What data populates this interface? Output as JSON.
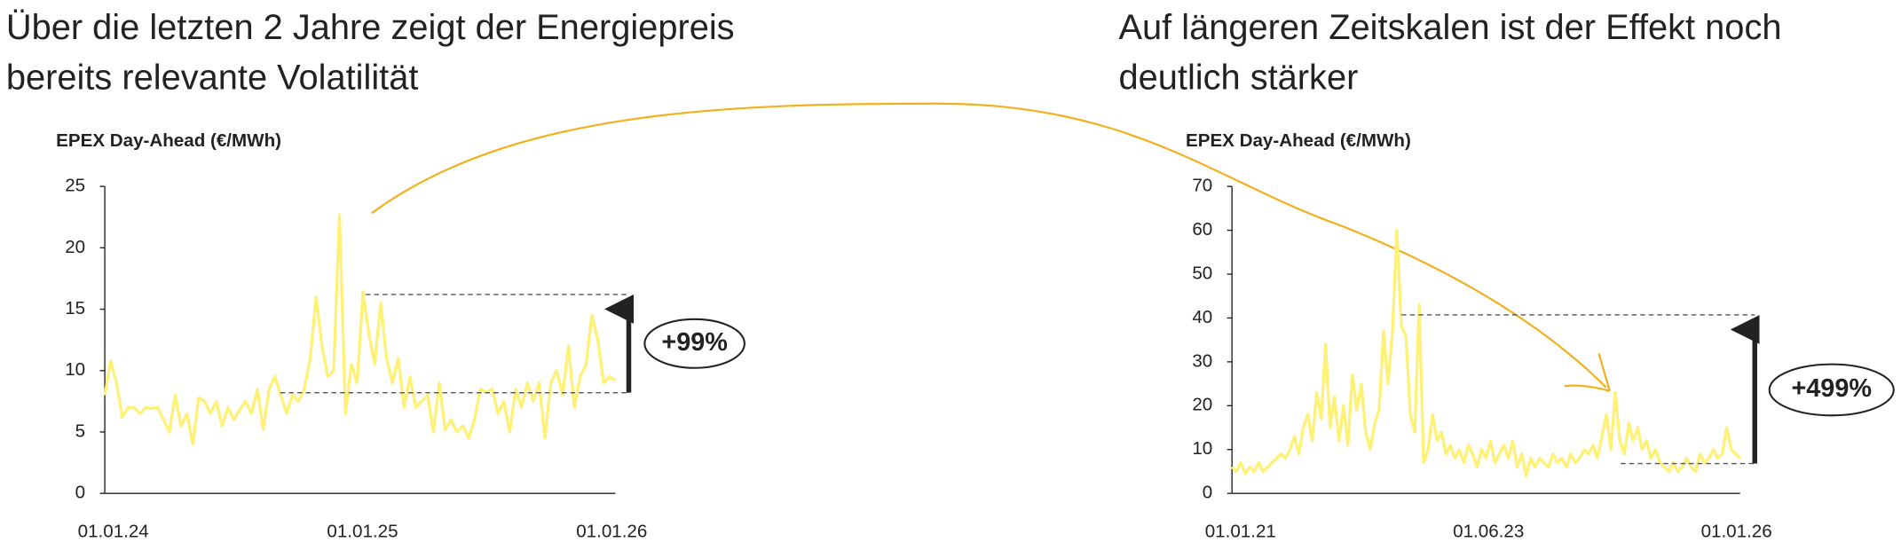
{
  "chart_data": [
    {
      "type": "line",
      "title_lines": [
        "Über die letzten 2 Jahre zeigt der Energiepreis",
        "bereits relevante Volatilität"
      ],
      "ylabel": "EPEX Day-Ahead (€/MWh)",
      "x_labels": [
        "01.01.24",
        "01.01.25",
        "01.01.26"
      ],
      "ylim": [
        0,
        25
      ],
      "yticks": [
        0,
        5,
        10,
        15,
        20,
        25
      ],
      "color": "#fff176",
      "values": [
        8,
        10.8,
        9,
        6.2,
        7,
        7,
        6.5,
        7,
        6.9,
        7,
        6,
        5,
        8,
        5.5,
        6.5,
        4,
        7.8,
        7.5,
        6.5,
        7.5,
        5.5,
        7,
        6,
        6.8,
        7.5,
        6.5,
        8.5,
        5.2,
        8.5,
        9.5,
        8,
        6.5,
        8,
        7.5,
        8.5,
        11,
        16,
        12,
        9.5,
        10,
        22.7,
        6.5,
        10.5,
        9,
        16.4,
        13,
        10.5,
        15.5,
        11,
        9,
        11,
        7,
        9.5,
        7,
        7.5,
        8,
        5,
        9,
        5.2,
        6,
        5,
        5.5,
        4.5,
        6,
        8.5,
        8.2,
        8.5,
        6.5,
        7.5,
        5,
        8.5,
        7,
        9,
        7.5,
        9,
        4.5,
        9,
        10,
        8,
        12,
        7,
        9.5,
        10.5,
        14.5,
        12.5,
        9,
        9.5,
        9.2
      ],
      "low_level": 8.2,
      "high_level": 16.2,
      "change_label": "+99%"
    },
    {
      "type": "line",
      "title_lines": [
        "Auf längeren Zeitskalen ist der Effekt noch",
        "deutlich stärker"
      ],
      "ylabel": "EPEX Day-Ahead (€/MWh)",
      "x_labels": [
        "01.01.21",
        "01.06.23",
        "01.01.26"
      ],
      "ylim": [
        0,
        70
      ],
      "yticks": [
        0,
        10,
        20,
        30,
        40,
        50,
        60,
        70
      ],
      "color": "#fff176",
      "values": [
        6,
        5,
        7,
        4.5,
        6,
        5,
        7,
        5,
        6,
        7,
        8,
        9,
        8,
        10,
        13,
        9,
        15,
        18,
        12,
        23,
        17,
        34,
        15,
        22,
        12,
        20,
        11,
        27,
        19,
        25,
        14,
        10,
        16,
        19,
        37,
        25,
        37,
        60,
        38,
        36,
        18,
        14,
        43,
        7,
        10,
        18,
        12,
        14,
        9,
        11,
        8,
        10,
        7,
        11,
        9,
        6,
        10,
        8,
        12,
        7,
        9,
        11,
        8,
        12,
        6,
        9,
        4,
        8,
        6,
        8,
        7,
        6,
        9,
        7,
        8,
        6,
        9,
        7,
        8,
        10,
        9,
        11,
        8,
        13,
        18,
        10,
        23,
        12,
        9,
        16,
        12,
        15,
        10,
        12,
        8,
        10,
        7,
        6,
        5,
        7,
        5,
        6,
        8,
        6,
        5,
        9,
        7,
        8,
        10,
        8,
        9,
        15,
        10,
        9,
        8
      ],
      "low_level": 6.8,
      "high_level": 40.7,
      "change_label": "+499%"
    }
  ]
}
